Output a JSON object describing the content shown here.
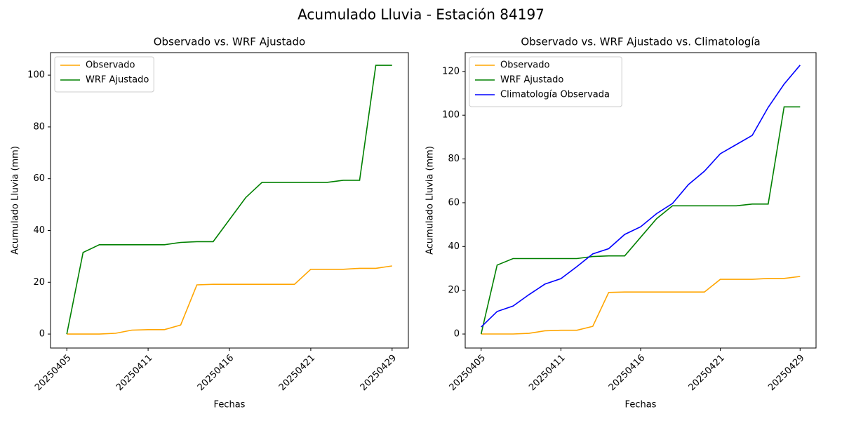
{
  "title": "Acumulado Lluvia - Estación 84197",
  "chart_data": [
    {
      "type": "line",
      "title": "Observado vs. WRF Ajustado",
      "xlabel": "Fechas",
      "ylabel": "Acumulado Lluvia (mm)",
      "categories": [
        "20250405",
        null,
        null,
        null,
        null,
        "20250411",
        null,
        null,
        null,
        null,
        "20250416",
        null,
        null,
        null,
        null,
        "20250421",
        null,
        null,
        null,
        null,
        "20250429"
      ],
      "series": [
        {
          "name": "Observado",
          "color": "#ffa500",
          "values": [
            0,
            0,
            0,
            0.3,
            1.5,
            1.7,
            1.7,
            3.5,
            19,
            19.2,
            19.2,
            19.2,
            19.2,
            19.2,
            19.2,
            25,
            25,
            25,
            25.4,
            25.4,
            26.3
          ]
        },
        {
          "name": "WRF Ajustado",
          "color": "#008000",
          "values": [
            0,
            31.5,
            34.5,
            34.5,
            34.5,
            34.5,
            34.5,
            35.4,
            35.7,
            35.7,
            44.2,
            52.7,
            58.6,
            58.6,
            58.6,
            58.6,
            58.6,
            59.4,
            59.4,
            103.8,
            103.8
          ]
        }
      ],
      "ylim": [
        -5.4,
        108.7
      ],
      "yticks": [
        0,
        20,
        40,
        60,
        80,
        100
      ],
      "legend": "upper left",
      "grid": false
    },
    {
      "type": "line",
      "title": "Observado vs. WRF Ajustado vs. Climatología",
      "xlabel": "Fechas",
      "ylabel": "Acumulado Lluvia (mm)",
      "categories": [
        "20250405",
        null,
        null,
        null,
        null,
        "20250411",
        null,
        null,
        null,
        null,
        "20250416",
        null,
        null,
        null,
        null,
        "20250421",
        null,
        null,
        null,
        null,
        "20250429"
      ],
      "series": [
        {
          "name": "Observado",
          "color": "#ffa500",
          "values": [
            0,
            0,
            0,
            0.3,
            1.5,
            1.7,
            1.7,
            3.5,
            19,
            19.2,
            19.2,
            19.2,
            19.2,
            19.2,
            19.2,
            25,
            25,
            25,
            25.4,
            25.4,
            26.3
          ]
        },
        {
          "name": "WRF Ajustado",
          "color": "#008000",
          "values": [
            0,
            31.5,
            34.5,
            34.5,
            34.5,
            34.5,
            34.5,
            35.4,
            35.7,
            35.7,
            44.2,
            52.7,
            58.6,
            58.6,
            58.6,
            58.6,
            58.6,
            59.4,
            59.4,
            103.8,
            103.8
          ]
        },
        {
          "name": "Climatología Observada",
          "color": "#0000ff",
          "values": [
            3.2,
            10.3,
            12.8,
            18,
            22.8,
            25.3,
            30.8,
            36.6,
            39,
            45.5,
            49,
            55,
            59.7,
            68.3,
            74.4,
            82.4,
            86.6,
            90.8,
            103.6,
            114.2,
            122.9
          ]
        }
      ],
      "ylim": [
        -6.4,
        128.6
      ],
      "yticks": [
        0,
        20,
        40,
        60,
        80,
        100,
        120
      ],
      "legend": "upper left",
      "grid": false
    }
  ]
}
